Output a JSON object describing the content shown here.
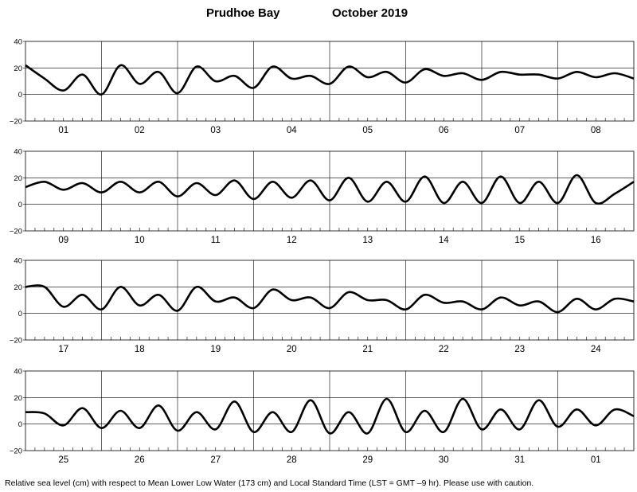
{
  "header": {
    "station": "Prudhoe Bay",
    "month_year": "October   2019"
  },
  "footer": {
    "note": "Relative sea level (cm) with respect to Mean Lower Low Water (173 cm) and Local Standard Time (LST = GMT –9 hr). Please use with caution."
  },
  "chart_data": [
    {
      "type": "line",
      "title": "",
      "xlabel": "",
      "ylabel": "",
      "ylim": [
        -20,
        40
      ],
      "yticks": [
        "40",
        "20",
        "0",
        "−20"
      ],
      "days": [
        "01",
        "02",
        "03",
        "04",
        "05",
        "06",
        "07",
        "08"
      ],
      "series": [
        {
          "x_days": [
            0,
            0.25,
            0.5,
            0.75,
            1,
            1.25,
            1.5,
            1.75,
            2,
            2.25,
            2.5,
            2.75,
            3,
            3.25,
            3.5,
            3.75,
            4,
            4.25,
            4.5,
            4.75,
            5,
            5.25,
            5.5,
            5.75,
            6,
            6.25,
            6.5,
            6.75,
            7,
            7.25,
            7.5,
            7.75,
            8
          ],
          "sea_level_cm": [
            22,
            12,
            3,
            15,
            0,
            22,
            8,
            17,
            1,
            21,
            10,
            14,
            5,
            21,
            12,
            14,
            8,
            21,
            13,
            17,
            9,
            19,
            14,
            16,
            11,
            17,
            15,
            15,
            12,
            17,
            13,
            16,
            12
          ]
        }
      ]
    },
    {
      "type": "line",
      "title": "",
      "xlabel": "",
      "ylabel": "",
      "ylim": [
        -20,
        40
      ],
      "yticks": [
        "40",
        "20",
        "0",
        "−20"
      ],
      "days": [
        "09",
        "10",
        "11",
        "12",
        "13",
        "14",
        "15",
        "16"
      ],
      "series": [
        {
          "x_days": [
            0,
            0.25,
            0.5,
            0.75,
            1,
            1.25,
            1.5,
            1.75,
            2,
            2.25,
            2.5,
            2.75,
            3,
            3.25,
            3.5,
            3.75,
            4,
            4.25,
            4.5,
            4.75,
            5,
            5.25,
            5.5,
            5.75,
            6,
            6.25,
            6.5,
            6.75,
            7,
            7.25,
            7.5,
            7.75,
            8
          ],
          "sea_level_cm": [
            13,
            17,
            11,
            16,
            9,
            17,
            9,
            17,
            6,
            16,
            7,
            18,
            4,
            17,
            5,
            18,
            3,
            20,
            2,
            17,
            2,
            21,
            1,
            17,
            1,
            21,
            1,
            17,
            1,
            22,
            1,
            8,
            17
          ]
        }
      ]
    },
    {
      "type": "line",
      "title": "",
      "xlabel": "",
      "ylabel": "",
      "ylim": [
        -20,
        40
      ],
      "yticks": [
        "40",
        "20",
        "0",
        "−20"
      ],
      "days": [
        "17",
        "18",
        "19",
        "20",
        "21",
        "22",
        "23",
        "24"
      ],
      "series": [
        {
          "x_days": [
            0,
            0.25,
            0.5,
            0.75,
            1,
            1.25,
            1.5,
            1.75,
            2,
            2.25,
            2.5,
            2.75,
            3,
            3.25,
            3.5,
            3.75,
            4,
            4.25,
            4.5,
            4.75,
            5,
            5.25,
            5.5,
            5.75,
            6,
            6.25,
            6.5,
            6.75,
            7,
            7.25,
            7.5,
            7.75,
            8
          ],
          "sea_level_cm": [
            20,
            20,
            5,
            14,
            3,
            20,
            6,
            14,
            2,
            20,
            9,
            12,
            4,
            18,
            10,
            12,
            4,
            16,
            10,
            10,
            3,
            14,
            8,
            9,
            3,
            12,
            6,
            9,
            1,
            11,
            3,
            11,
            9
          ]
        }
      ]
    },
    {
      "type": "line",
      "title": "",
      "xlabel": "",
      "ylabel": "",
      "ylim": [
        -20,
        40
      ],
      "yticks": [
        "40",
        "20",
        "0",
        "−20"
      ],
      "days": [
        "25",
        "26",
        "27",
        "28",
        "29",
        "30",
        "31",
        "01"
      ],
      "series": [
        {
          "x_days": [
            0,
            0.25,
            0.5,
            0.75,
            1,
            1.25,
            1.5,
            1.75,
            2,
            2.25,
            2.5,
            2.75,
            3,
            3.25,
            3.5,
            3.75,
            4,
            4.25,
            4.5,
            4.75,
            5,
            5.25,
            5.5,
            5.75,
            6,
            6.25,
            6.5,
            6.75,
            7,
            7.25,
            7.5,
            7.75,
            8
          ],
          "sea_level_cm": [
            9,
            8,
            -1,
            12,
            -3,
            10,
            -3,
            14,
            -5,
            9,
            -4,
            17,
            -6,
            9,
            -6,
            18,
            -7,
            9,
            -7,
            19,
            -6,
            10,
            -6,
            19,
            -4,
            11,
            -4,
            18,
            -2,
            11,
            -1,
            11,
            6
          ]
        }
      ]
    }
  ]
}
